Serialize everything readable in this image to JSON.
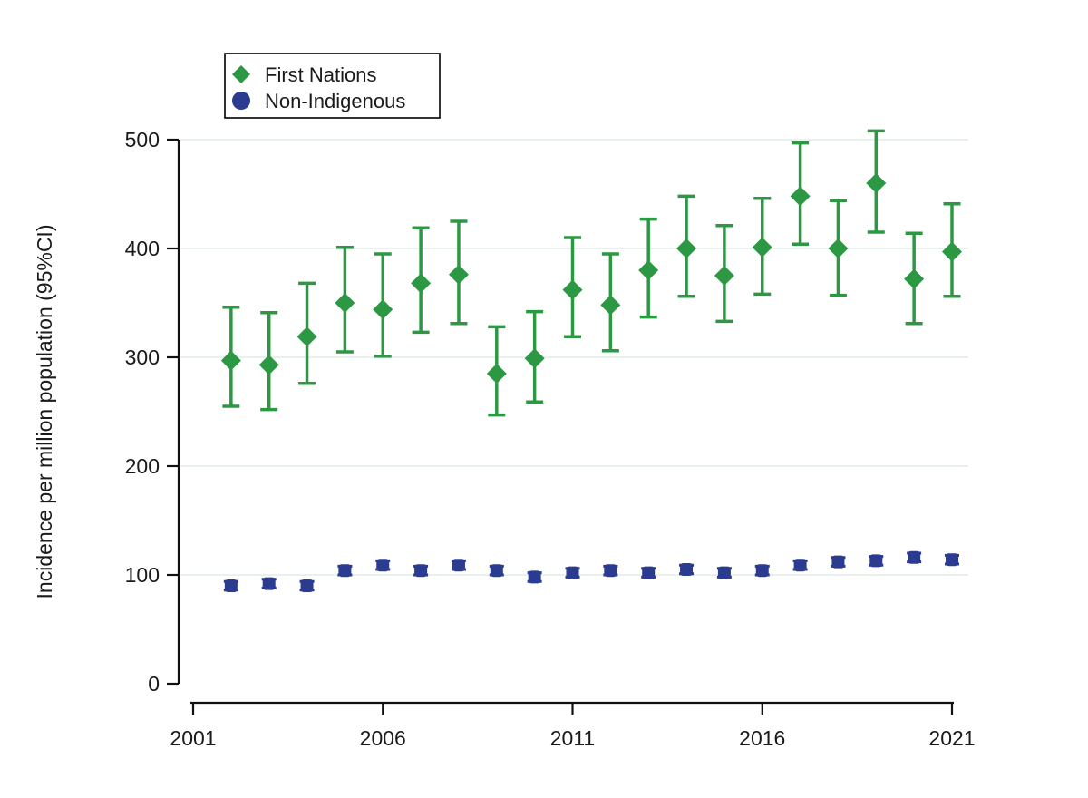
{
  "chart_data": {
    "type": "scatter",
    "title": "",
    "xlabel": "",
    "ylabel": "Incidence per million population (95%CI)",
    "xlim": [
      2001,
      2021
    ],
    "ylim": [
      0,
      500
    ],
    "x_ticks": [
      2001,
      2006,
      2011,
      2016,
      2021
    ],
    "y_ticks": [
      0,
      100,
      200,
      300,
      400,
      500
    ],
    "grid": "horizontal-light",
    "legend_position": "top-left-inside",
    "colors": {
      "first_nations": "#2d9843",
      "non_indigenous": "#2b3b8f",
      "gridline": "#e8f1ee",
      "axis": "#111111"
    },
    "series": [
      {
        "name": "First Nations",
        "marker": "diamond",
        "color_key": "first_nations",
        "points": [
          {
            "year": 2002,
            "value": 297,
            "lo": 255,
            "hi": 346
          },
          {
            "year": 2003,
            "value": 293,
            "lo": 252,
            "hi": 341
          },
          {
            "year": 2004,
            "value": 319,
            "lo": 276,
            "hi": 368
          },
          {
            "year": 2005,
            "value": 350,
            "lo": 305,
            "hi": 401
          },
          {
            "year": 2006,
            "value": 344,
            "lo": 301,
            "hi": 395
          },
          {
            "year": 2007,
            "value": 368,
            "lo": 323,
            "hi": 419
          },
          {
            "year": 2008,
            "value": 376,
            "lo": 331,
            "hi": 425
          },
          {
            "year": 2009,
            "value": 285,
            "lo": 247,
            "hi": 328
          },
          {
            "year": 2010,
            "value": 299,
            "lo": 259,
            "hi": 342
          },
          {
            "year": 2011,
            "value": 362,
            "lo": 319,
            "hi": 410
          },
          {
            "year": 2012,
            "value": 348,
            "lo": 306,
            "hi": 395
          },
          {
            "year": 2013,
            "value": 380,
            "lo": 337,
            "hi": 427
          },
          {
            "year": 2014,
            "value": 400,
            "lo": 356,
            "hi": 448
          },
          {
            "year": 2015,
            "value": 375,
            "lo": 333,
            "hi": 421
          },
          {
            "year": 2016,
            "value": 401,
            "lo": 358,
            "hi": 446
          },
          {
            "year": 2017,
            "value": 448,
            "lo": 404,
            "hi": 497
          },
          {
            "year": 2018,
            "value": 400,
            "lo": 357,
            "hi": 444
          },
          {
            "year": 2019,
            "value": 460,
            "lo": 415,
            "hi": 508
          },
          {
            "year": 2020,
            "value": 372,
            "lo": 331,
            "hi": 414
          },
          {
            "year": 2021,
            "value": 397,
            "lo": 356,
            "hi": 441
          }
        ]
      },
      {
        "name": "Non-Indigenous",
        "marker": "circle",
        "color_key": "non_indigenous",
        "points": [
          {
            "year": 2002,
            "value": 90,
            "lo": 86,
            "hi": 94
          },
          {
            "year": 2003,
            "value": 92,
            "lo": 88,
            "hi": 96
          },
          {
            "year": 2004,
            "value": 90,
            "lo": 86,
            "hi": 94
          },
          {
            "year": 2005,
            "value": 104,
            "lo": 100,
            "hi": 108
          },
          {
            "year": 2006,
            "value": 109,
            "lo": 105,
            "hi": 113
          },
          {
            "year": 2007,
            "value": 104,
            "lo": 100,
            "hi": 108
          },
          {
            "year": 2008,
            "value": 109,
            "lo": 105,
            "hi": 113
          },
          {
            "year": 2009,
            "value": 104,
            "lo": 100,
            "hi": 108
          },
          {
            "year": 2010,
            "value": 98,
            "lo": 94,
            "hi": 102
          },
          {
            "year": 2011,
            "value": 102,
            "lo": 98,
            "hi": 106
          },
          {
            "year": 2012,
            "value": 104,
            "lo": 100,
            "hi": 108
          },
          {
            "year": 2013,
            "value": 102,
            "lo": 98,
            "hi": 106
          },
          {
            "year": 2014,
            "value": 105,
            "lo": 101,
            "hi": 109
          },
          {
            "year": 2015,
            "value": 102,
            "lo": 98,
            "hi": 106
          },
          {
            "year": 2016,
            "value": 104,
            "lo": 100,
            "hi": 108
          },
          {
            "year": 2017,
            "value": 109,
            "lo": 105,
            "hi": 113
          },
          {
            "year": 2018,
            "value": 112,
            "lo": 108,
            "hi": 116
          },
          {
            "year": 2019,
            "value": 113,
            "lo": 109,
            "hi": 117
          },
          {
            "year": 2020,
            "value": 116,
            "lo": 112,
            "hi": 120
          },
          {
            "year": 2021,
            "value": 114,
            "lo": 110,
            "hi": 118
          }
        ]
      }
    ],
    "legend": {
      "items": [
        {
          "label": "First Nations",
          "marker": "diamond",
          "color_key": "first_nations"
        },
        {
          "label": "Non-Indigenous",
          "marker": "circle",
          "color_key": "non_indigenous"
        }
      ]
    }
  }
}
